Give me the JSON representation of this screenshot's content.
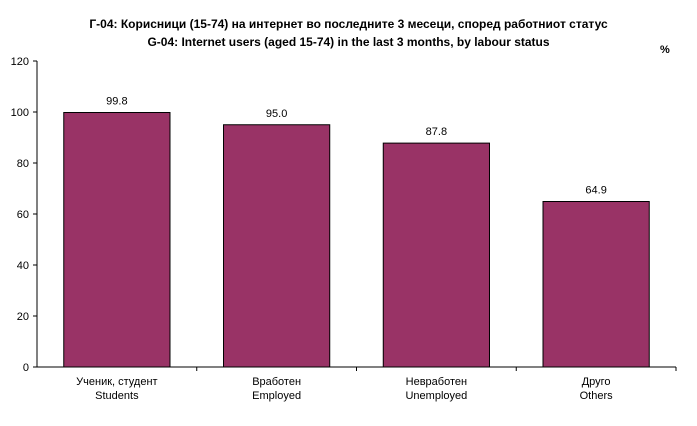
{
  "chart_data": {
    "type": "bar",
    "title": "Г-04: Корисници (15-74) на интернет во последните 3 месеци, според работниот статус",
    "subtitle": "G-04: Internet users (aged 15-74) in the last 3 months, by labour status",
    "unit": "%",
    "categories": [
      [
        "Ученик, студент",
        "Students"
      ],
      [
        "Вработен",
        "Employed"
      ],
      [
        "Невработен",
        "Unemployed"
      ],
      [
        "Друго",
        "Others"
      ]
    ],
    "values": [
      99.8,
      95.0,
      87.8,
      64.9
    ],
    "value_labels": [
      "99.8",
      "95.0",
      "87.8",
      "64.9"
    ],
    "ylim": [
      0,
      120
    ],
    "yticks": [
      "0",
      "20",
      "40",
      "60",
      "80",
      "100",
      "120"
    ],
    "grid": false,
    "legend": "none",
    "colors": {
      "bar": "#993366",
      "bar_border": "#000000",
      "axis": "#000000"
    }
  }
}
